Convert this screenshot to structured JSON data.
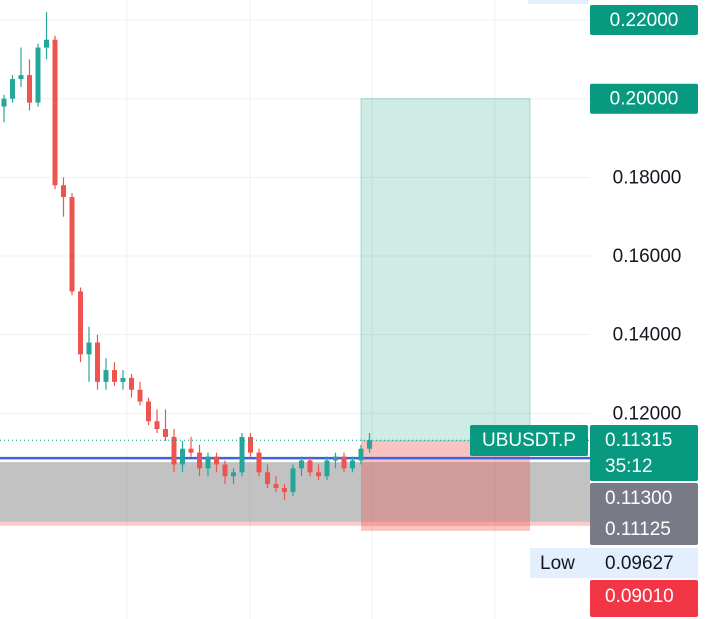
{
  "chart_data": {
    "type": "candlestick",
    "symbol": "UBUSDT.P",
    "countdown": "35:12",
    "open": [
      0.198,
      0.2,
      0.205,
      0.206,
      0.199,
      0.213,
      0.215,
      0.178,
      0.175,
      0.151,
      0.135,
      0.138,
      0.128,
      0.131,
      0.128,
      0.129,
      0.126,
      0.123,
      0.118,
      0.116,
      0.114,
      0.107,
      0.111,
      0.11,
      0.106,
      0.109,
      0.107,
      0.104,
      0.105,
      0.114,
      0.11,
      0.105,
      0.102,
      0.101,
      0.1,
      0.106,
      0.108,
      0.105,
      0.104,
      0.108,
      0.109,
      0.106,
      0.108,
      0.111
    ],
    "high": [
      0.201,
      0.206,
      0.213,
      0.21,
      0.214,
      0.222,
      0.216,
      0.18,
      0.176,
      0.152,
      0.142,
      0.14,
      0.134,
      0.133,
      0.131,
      0.13,
      0.128,
      0.124,
      0.121,
      0.121,
      0.116,
      0.113,
      0.114,
      0.112,
      0.11,
      0.11,
      0.108,
      0.106,
      0.115,
      0.115,
      0.111,
      0.107,
      0.104,
      0.102,
      0.107,
      0.109,
      0.109,
      0.107,
      0.109,
      0.11,
      0.11,
      0.109,
      0.112,
      0.115
    ],
    "low": [
      0.194,
      0.199,
      0.203,
      0.197,
      0.198,
      0.21,
      0.177,
      0.17,
      0.15,
      0.133,
      0.128,
      0.126,
      0.126,
      0.127,
      0.126,
      0.124,
      0.122,
      0.117,
      0.115,
      0.113,
      0.105,
      0.105,
      0.109,
      0.104,
      0.104,
      0.105,
      0.102,
      0.102,
      0.104,
      0.109,
      0.104,
      0.101,
      0.1,
      0.098,
      0.099,
      0.104,
      0.104,
      0.103,
      0.103,
      0.106,
      0.105,
      0.105,
      0.107,
      0.11
    ],
    "close": [
      0.2,
      0.205,
      0.206,
      0.199,
      0.213,
      0.215,
      0.178,
      0.175,
      0.151,
      0.135,
      0.138,
      0.128,
      0.131,
      0.128,
      0.129,
      0.126,
      0.123,
      0.118,
      0.116,
      0.114,
      0.107,
      0.111,
      0.11,
      0.106,
      0.109,
      0.107,
      0.104,
      0.105,
      0.114,
      0.11,
      0.105,
      0.102,
      0.101,
      0.1,
      0.106,
      0.108,
      0.105,
      0.104,
      0.108,
      0.109,
      0.106,
      0.108,
      0.111,
      0.11315
    ],
    "up_color": "#26a69a",
    "down_color": "#ef5350",
    "ylim": [
      0.0677,
      0.2251
    ],
    "yticks": [
      {
        "value": 0.12,
        "label": "0.12000"
      },
      {
        "value": 0.14,
        "label": "0.14000"
      },
      {
        "value": 0.16,
        "label": "0.16000"
      },
      {
        "value": 0.18,
        "label": "0.18000"
      },
      {
        "value": 0.2,
        "label": "0.20000",
        "boxed": true
      },
      {
        "value": 0.22,
        "label": "0.22000",
        "boxed": true
      }
    ],
    "position": {
      "entry": 0.113,
      "target": 0.2,
      "stop": 0.0901
    },
    "horizontal_line": {
      "value": 0.1086,
      "color": "#3d63e0"
    },
    "zone": [
      0.0924,
      0.1076
    ],
    "price_labels": {
      "last": "0.11315",
      "line": "0.11300",
      "zone": "0.11125",
      "low_name": "Low",
      "low": "0.09627",
      "stop": "0.09010"
    }
  }
}
